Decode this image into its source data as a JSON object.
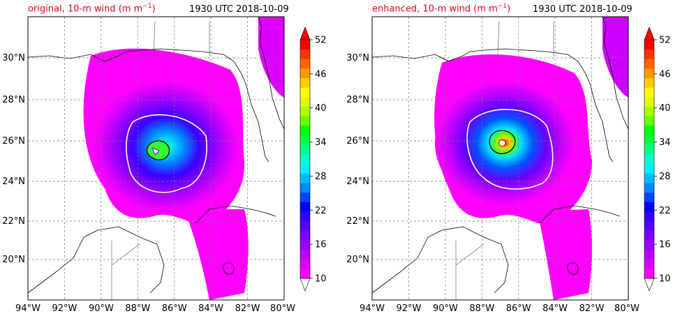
{
  "panels": [
    {
      "id": "left",
      "title": "original, 10-m wind (m m",
      "title_sup": "−1",
      "title_close": ")",
      "timestamp": "1930 UTC 2018-10-09"
    },
    {
      "id": "right",
      "title": "enhanced, 10-m wind (m m",
      "title_sup": "−1",
      "title_close": ")",
      "timestamp": "1930 UTC 2018-10-09"
    }
  ],
  "map": {
    "lon_range": [
      -94,
      -80
    ],
    "lat_range": [
      18.2,
      32.0
    ],
    "lon_ticks": [
      "94°W",
      "92°W",
      "90°W",
      "88°W",
      "86°W",
      "84°W",
      "82°W",
      "80°W"
    ],
    "lat_ticks": [
      "20°N",
      "22°N",
      "24°N",
      "26°N",
      "28°N",
      "30°N"
    ],
    "gridlines": true
  },
  "colorbar": {
    "ticks": [
      "10",
      "16",
      "22",
      "28",
      "34",
      "40",
      "46",
      "52"
    ],
    "colors": [
      "#ff00ff",
      "#dd00ff",
      "#bb00ff",
      "#9900ff",
      "#7700ff",
      "#5500ff",
      "#3300ff",
      "#0000ff",
      "#0044ff",
      "#0088ff",
      "#00bbff",
      "#00eeff",
      "#00ffcc",
      "#00ff88",
      "#00ff44",
      "#00ff00",
      "#66ff00",
      "#aaff00",
      "#ddff00",
      "#ffff00",
      "#ffcc00",
      "#ff9900",
      "#ff6600",
      "#ff3300",
      "#ff0000"
    ],
    "extend_min_color": "#ffffff",
    "extend_max_color": "#ff0000"
  }
}
